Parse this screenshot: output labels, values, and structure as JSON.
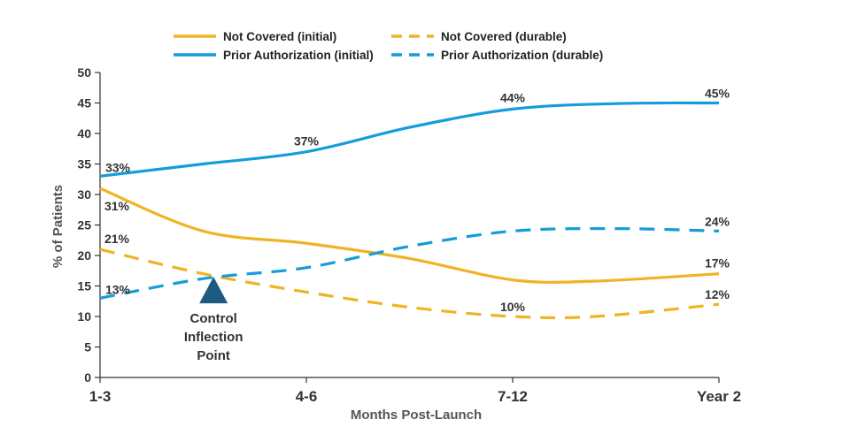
{
  "chart_data": {
    "type": "line",
    "title": "",
    "xlabel": "Months Post-Launch",
    "ylabel": "% of Patients",
    "categories": [
      "1-3",
      "4-6",
      "7-12",
      "Year 2"
    ],
    "x_positions": [
      0,
      1,
      2,
      3
    ],
    "yticks": [
      0,
      5,
      10,
      15,
      20,
      25,
      30,
      35,
      40,
      45,
      50
    ],
    "ylim": [
      0,
      50
    ],
    "grid": false,
    "legend_placement": "top",
    "series": [
      {
        "name": "Not Covered (initial)",
        "color": "#F0B323",
        "dash": "solid",
        "points": [
          [
            0,
            31
          ],
          [
            0.5,
            24
          ],
          [
            1,
            22
          ],
          [
            1.5,
            19.5
          ],
          [
            2,
            16
          ],
          [
            2.4,
            15.8
          ],
          [
            3,
            17
          ]
        ],
        "labels": [
          {
            "x": 0,
            "y": 31,
            "text": "31%"
          },
          {
            "x": 3,
            "y": 17,
            "text": "17%"
          }
        ]
      },
      {
        "name": "Not Covered (durable)",
        "color": "#F0B323",
        "dash": "dashed",
        "points": [
          [
            0,
            21
          ],
          [
            0.5,
            17
          ],
          [
            1,
            14
          ],
          [
            1.5,
            11.5
          ],
          [
            2,
            10
          ],
          [
            2.4,
            10
          ],
          [
            3,
            12
          ]
        ],
        "labels": [
          {
            "x": 0,
            "y": 21,
            "text": "21%"
          },
          {
            "x": 2,
            "y": 10,
            "text": "10%"
          },
          {
            "x": 3,
            "y": 12,
            "text": "12%"
          }
        ]
      },
      {
        "name": "Prior Authorization (initial)",
        "color": "#139DD9",
        "dash": "solid",
        "points": [
          [
            0,
            33
          ],
          [
            0.5,
            35
          ],
          [
            1,
            37
          ],
          [
            1.5,
            41
          ],
          [
            2,
            44
          ],
          [
            2.5,
            44.9
          ],
          [
            3,
            45
          ]
        ],
        "labels": [
          {
            "x": 0,
            "y": 33,
            "text": "33%"
          },
          {
            "x": 1,
            "y": 37,
            "text": "37%"
          },
          {
            "x": 2,
            "y": 44,
            "text": "44%"
          },
          {
            "x": 3,
            "y": 45,
            "text": "45%"
          }
        ]
      },
      {
        "name": "Prior Authorization (durable)",
        "color": "#139DD9",
        "dash": "dashed",
        "points": [
          [
            0,
            13
          ],
          [
            0.5,
            16.2
          ],
          [
            1,
            18
          ],
          [
            1.5,
            21.5
          ],
          [
            2,
            24
          ],
          [
            2.5,
            24.4
          ],
          [
            3,
            24
          ]
        ],
        "labels": [
          {
            "x": 0,
            "y": 13,
            "text": "13%"
          },
          {
            "x": 3,
            "y": 24,
            "text": "24%"
          }
        ]
      }
    ],
    "annotations": [
      {
        "text_lines": [
          "Control",
          "Inflection",
          "Point"
        ],
        "marker": "triangle",
        "marker_color": "#1E5A82",
        "x": 0.55,
        "y": 16.5
      }
    ]
  }
}
